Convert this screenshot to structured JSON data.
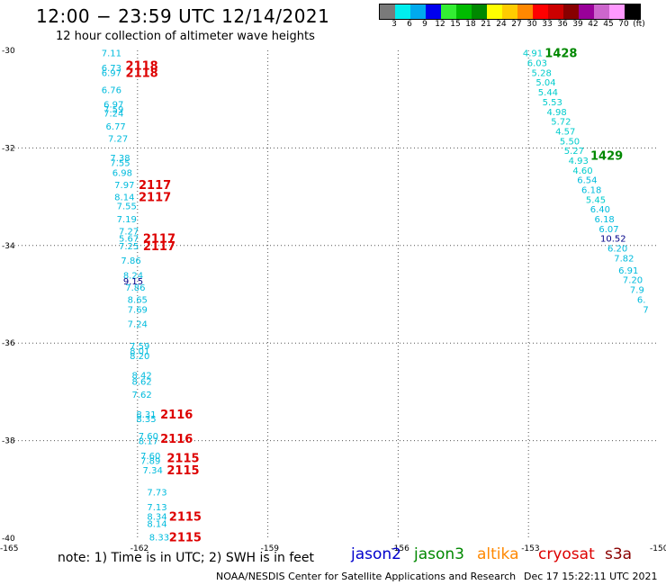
{
  "title": "12:00 − 23:59 UTC 12/14/2021",
  "subtitle": "12 hour collection of altimeter wave heights",
  "note": "note: 1) Time is in UTC; 2) SWH is in feet",
  "credit": "NOAA/NESDIS Center for Satellite Applications and Research",
  "timestamp": "Dec 17 15:22:11 UTC 2021",
  "legend": [
    {
      "name": "jason2",
      "color": "#0000cc"
    },
    {
      "name": "jason3",
      "color": "#008800"
    },
    {
      "name": "altika",
      "color": "#ff8800"
    },
    {
      "name": "cryosat",
      "color": "#dd0000"
    },
    {
      "name": "s3a",
      "color": "#880000"
    }
  ],
  "colorbar": {
    "colors": [
      "#7a7a7a",
      "#00eeee",
      "#00aaee",
      "#0000ee",
      "#33ee33",
      "#00bb00",
      "#008800",
      "#ffff00",
      "#ffcc00",
      "#ff8800",
      "#ff0000",
      "#cc0000",
      "#880000",
      "#990099",
      "#cc66cc",
      "#ff99ff",
      "#000000"
    ],
    "labels": [
      "3",
      "6",
      "9",
      "12",
      "15",
      "18",
      "21",
      "24",
      "27",
      "30",
      "33",
      "36",
      "39",
      "42",
      "45",
      "70",
      "(ft)"
    ]
  },
  "map": {
    "lon_range": [
      -165,
      -150
    ],
    "lat_range": [
      -40,
      -30
    ],
    "lat_ticks": [
      "-30",
      "-32",
      "-34",
      "-36",
      "-38",
      "-40"
    ],
    "lon_ticks": [
      "-165",
      "-162",
      "-159",
      "-156",
      "-153",
      "-150"
    ],
    "grid_lon": [
      -162,
      -159,
      -156,
      -153
    ],
    "grid_lat": [
      -32,
      -34,
      -36,
      -38
    ],
    "observations": [
      {
        "lon": -162.6,
        "lat": -30.05,
        "swh": "7.11",
        "color": "#00bbdd"
      },
      {
        "lon": -162.6,
        "lat": -30.35,
        "swh": "6.73",
        "color": "#00bbdd"
      },
      {
        "lon": -162.6,
        "lat": -30.45,
        "swh": "6.97",
        "color": "#00bbdd"
      },
      {
        "lon": -162.6,
        "lat": -30.8,
        "swh": "6.76",
        "color": "#00bbdd"
      },
      {
        "lon": -162.55,
        "lat": -31.1,
        "swh": "6.97",
        "color": "#00bbdd"
      },
      {
        "lon": -162.55,
        "lat": -31.2,
        "swh": "7.59",
        "color": "#00bbdd"
      },
      {
        "lon": -162.55,
        "lat": -31.28,
        "swh": "7.24",
        "color": "#00bbdd"
      },
      {
        "lon": -162.5,
        "lat": -31.55,
        "swh": "6.77",
        "color": "#00bbdd"
      },
      {
        "lon": -162.45,
        "lat": -31.8,
        "swh": "7.27",
        "color": "#00bbdd"
      },
      {
        "lon": -162.4,
        "lat": -32.2,
        "swh": "7.38",
        "color": "#00bbdd"
      },
      {
        "lon": -162.4,
        "lat": -32.3,
        "swh": "7.55",
        "color": "#00bbdd"
      },
      {
        "lon": -162.35,
        "lat": -32.5,
        "swh": "6.98",
        "color": "#00bbdd"
      },
      {
        "lon": -162.3,
        "lat": -32.75,
        "swh": "7.97",
        "color": "#00bbdd"
      },
      {
        "lon": -162.3,
        "lat": -33.0,
        "swh": "8.14",
        "color": "#00bbdd"
      },
      {
        "lon": -162.25,
        "lat": -33.18,
        "swh": "7.55",
        "color": "#00bbdd"
      },
      {
        "lon": -162.25,
        "lat": -33.45,
        "swh": "7.19",
        "color": "#00bbdd"
      },
      {
        "lon": -162.2,
        "lat": -33.7,
        "swh": "7.27",
        "color": "#00bbdd"
      },
      {
        "lon": -162.2,
        "lat": -33.85,
        "swh": "5.67",
        "color": "#00bbdd"
      },
      {
        "lon": -162.2,
        "lat": -34.0,
        "swh": "7.25",
        "color": "#00bbdd"
      },
      {
        "lon": -162.15,
        "lat": -34.3,
        "swh": "7.86",
        "color": "#00bbdd"
      },
      {
        "lon": -162.1,
        "lat": -34.6,
        "swh": "8.24",
        "color": "#00bbdd"
      },
      {
        "lon": -162.1,
        "lat": -34.72,
        "swh": "9.15",
        "color": "#000088"
      },
      {
        "lon": -162.05,
        "lat": -34.85,
        "swh": "7.86",
        "color": "#00bbdd"
      },
      {
        "lon": -162.0,
        "lat": -35.1,
        "swh": "8.65",
        "color": "#00bbdd"
      },
      {
        "lon": -162.0,
        "lat": -35.3,
        "swh": "7.69",
        "color": "#00bbdd"
      },
      {
        "lon": -162.0,
        "lat": -35.6,
        "swh": "7.24",
        "color": "#00bbdd"
      },
      {
        "lon": -161.95,
        "lat": -36.05,
        "swh": "7.59",
        "color": "#00bbdd"
      },
      {
        "lon": -161.95,
        "lat": -36.15,
        "swh": "8.01",
        "color": "#00bbdd"
      },
      {
        "lon": -161.95,
        "lat": -36.25,
        "swh": "8.20",
        "color": "#00bbdd"
      },
      {
        "lon": -161.9,
        "lat": -36.65,
        "swh": "8.42",
        "color": "#00bbdd"
      },
      {
        "lon": -161.9,
        "lat": -36.78,
        "swh": "8.62",
        "color": "#00bbdd"
      },
      {
        "lon": -161.9,
        "lat": -37.05,
        "swh": "7.62",
        "color": "#00bbdd"
      },
      {
        "lon": -161.8,
        "lat": -37.45,
        "swh": "8.31",
        "color": "#00bbdd"
      },
      {
        "lon": -161.8,
        "lat": -37.55,
        "swh": "8.35",
        "color": "#00bbdd"
      },
      {
        "lon": -161.75,
        "lat": -37.9,
        "swh": "7.60",
        "color": "#00bbdd"
      },
      {
        "lon": -161.75,
        "lat": -38.0,
        "swh": "8.17",
        "color": "#00bbdd"
      },
      {
        "lon": -161.7,
        "lat": -38.3,
        "swh": "7.60",
        "color": "#00bbdd"
      },
      {
        "lon": -161.7,
        "lat": -38.4,
        "swh": "7.89",
        "color": "#00bbdd"
      },
      {
        "lon": -161.65,
        "lat": -38.6,
        "swh": "7.34",
        "color": "#00bbdd"
      },
      {
        "lon": -161.55,
        "lat": -39.05,
        "swh": "7.73",
        "color": "#00bbdd"
      },
      {
        "lon": -161.55,
        "lat": -39.35,
        "swh": "7.13",
        "color": "#00bbdd"
      },
      {
        "lon": -161.55,
        "lat": -39.55,
        "swh": "8.34",
        "color": "#00bbdd"
      },
      {
        "lon": -161.55,
        "lat": -39.7,
        "swh": "8.14",
        "color": "#00bbdd"
      },
      {
        "lon": -161.5,
        "lat": -39.97,
        "swh": "8.33",
        "color": "#00bbdd"
      },
      {
        "lon": -152.9,
        "lat": -30.05,
        "swh": "4.91",
        "color": "#00cccc"
      },
      {
        "lon": -152.8,
        "lat": -30.25,
        "swh": "6.03",
        "color": "#00cccc"
      },
      {
        "lon": -152.7,
        "lat": -30.45,
        "swh": "5.28",
        "color": "#00cccc"
      },
      {
        "lon": -152.6,
        "lat": -30.65,
        "swh": "5.04",
        "color": "#00cccc"
      },
      {
        "lon": -152.55,
        "lat": -30.85,
        "swh": "5.44",
        "color": "#00cccc"
      },
      {
        "lon": -152.45,
        "lat": -31.05,
        "swh": "5.53",
        "color": "#00cccc"
      },
      {
        "lon": -152.35,
        "lat": -31.25,
        "swh": "4.98",
        "color": "#00cccc"
      },
      {
        "lon": -152.25,
        "lat": -31.45,
        "swh": "5.72",
        "color": "#00cccc"
      },
      {
        "lon": -152.15,
        "lat": -31.65,
        "swh": "4.57",
        "color": "#00cccc"
      },
      {
        "lon": -152.05,
        "lat": -31.85,
        "swh": "5.50",
        "color": "#00cccc"
      },
      {
        "lon": -151.95,
        "lat": -32.05,
        "swh": "5.27",
        "color": "#00cccc"
      },
      {
        "lon": -151.85,
        "lat": -32.25,
        "swh": "4.93",
        "color": "#00cccc"
      },
      {
        "lon": -151.75,
        "lat": -32.45,
        "swh": "4.60",
        "color": "#00cccc"
      },
      {
        "lon": -151.65,
        "lat": -32.65,
        "swh": "6.54",
        "color": "#00bbdd"
      },
      {
        "lon": -151.55,
        "lat": -32.85,
        "swh": "6.18",
        "color": "#00bbdd"
      },
      {
        "lon": -151.45,
        "lat": -33.05,
        "swh": "5.45",
        "color": "#00cccc"
      },
      {
        "lon": -151.35,
        "lat": -33.25,
        "swh": "6.40",
        "color": "#00bbdd"
      },
      {
        "lon": -151.25,
        "lat": -33.45,
        "swh": "6.18",
        "color": "#00bbdd"
      },
      {
        "lon": -151.15,
        "lat": -33.65,
        "swh": "6.07",
        "color": "#00bbdd"
      },
      {
        "lon": -151.05,
        "lat": -33.85,
        "swh": "10.52",
        "color": "#000088"
      },
      {
        "lon": -150.95,
        "lat": -34.05,
        "swh": "6.20",
        "color": "#00bbdd"
      },
      {
        "lon": -150.8,
        "lat": -34.25,
        "swh": "7.82",
        "color": "#00bbdd"
      },
      {
        "lon": -150.7,
        "lat": -34.5,
        "swh": "6.91",
        "color": "#00bbdd"
      },
      {
        "lon": -150.6,
        "lat": -34.7,
        "swh": "7.20",
        "color": "#00bbdd"
      },
      {
        "lon": -150.5,
        "lat": -34.9,
        "swh": "7.9",
        "color": "#00bbdd"
      },
      {
        "lon": -150.4,
        "lat": -35.1,
        "swh": "6.",
        "color": "#00bbdd"
      },
      {
        "lon": -150.3,
        "lat": -35.3,
        "swh": "7",
        "color": "#00bbdd"
      }
    ],
    "passes": [
      {
        "lon": -161.9,
        "lat": -30.3,
        "label": "2118",
        "color": "#dd0000"
      },
      {
        "lon": -161.9,
        "lat": -30.45,
        "label": "2118",
        "color": "#dd0000"
      },
      {
        "lon": -161.6,
        "lat": -32.75,
        "label": "2117",
        "color": "#dd0000"
      },
      {
        "lon": -161.6,
        "lat": -33.0,
        "label": "2117",
        "color": "#dd0000"
      },
      {
        "lon": -161.5,
        "lat": -33.85,
        "label": "2117",
        "color": "#dd0000"
      },
      {
        "lon": -161.5,
        "lat": -34.0,
        "label": "2117",
        "color": "#dd0000"
      },
      {
        "lon": -161.1,
        "lat": -37.45,
        "label": "2116",
        "color": "#dd0000"
      },
      {
        "lon": -161.1,
        "lat": -37.95,
        "label": "2116",
        "color": "#dd0000"
      },
      {
        "lon": -160.95,
        "lat": -38.35,
        "label": "2115",
        "color": "#dd0000"
      },
      {
        "lon": -160.95,
        "lat": -38.6,
        "label": "2115",
        "color": "#dd0000"
      },
      {
        "lon": -160.9,
        "lat": -39.55,
        "label": "2115",
        "color": "#dd0000"
      },
      {
        "lon": -160.9,
        "lat": -39.97,
        "label": "2115",
        "color": "#dd0000"
      },
      {
        "lon": -152.25,
        "lat": -30.05,
        "label": "1428",
        "color": "#008800"
      },
      {
        "lon": -151.2,
        "lat": -32.15,
        "label": "1429",
        "color": "#008800"
      }
    ]
  }
}
